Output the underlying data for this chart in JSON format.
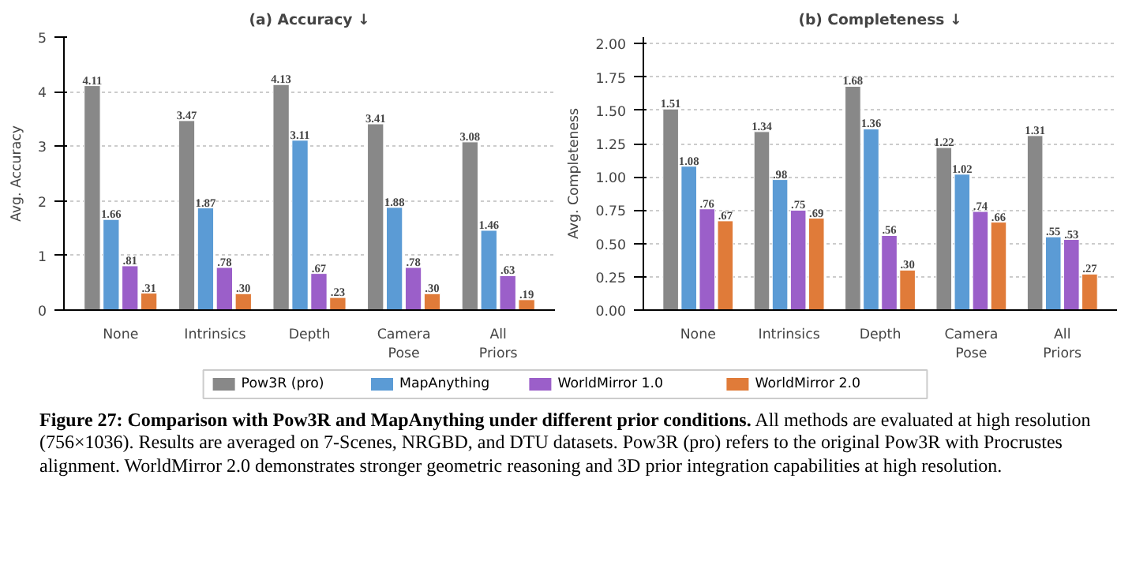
{
  "chart_data": [
    {
      "type": "bar",
      "title": "(a) Accuracy ↓",
      "ylabel": "Avg. Accuracy",
      "categories": [
        "None",
        "Intrinsics",
        "Depth",
        "Camera Pose",
        "All Priors"
      ],
      "ylim": [
        0,
        5
      ],
      "yticks": [
        0,
        1,
        2,
        3,
        4,
        5
      ],
      "grid": "y",
      "legend": "bottom",
      "series": [
        {
          "name": "Pow3R (pro)",
          "color": "#888888",
          "values": [
            4.11,
            3.47,
            4.13,
            3.41,
            3.08
          ],
          "value_labels": [
            "4.11",
            "3.47",
            "4.13",
            "3.41",
            "3.08"
          ]
        },
        {
          "name": "MapAnything",
          "color": "#5b9bd5",
          "values": [
            1.66,
            1.87,
            3.11,
            1.88,
            1.46
          ],
          "value_labels": [
            "1.66",
            "1.87",
            "3.11",
            "1.88",
            "1.46"
          ]
        },
        {
          "name": "WorldMirror 1.0",
          "color": "#9b5fc9",
          "values": [
            0.81,
            0.78,
            0.67,
            0.78,
            0.63
          ],
          "value_labels": [
            ".81",
            ".78",
            ".67",
            ".78",
            ".63"
          ]
        },
        {
          "name": "WorldMirror 2.0",
          "color": "#e07b39",
          "values": [
            0.31,
            0.3,
            0.23,
            0.3,
            0.19
          ],
          "value_labels": [
            ".31",
            ".30",
            ".23",
            ".30",
            ".19"
          ]
        }
      ],
      "annotations": [
        "Figure 27: Comparison with Pow3R and MapAnything under different prior conditions.",
        "All methods are evaluated at high resolution (756×1036). Results are averaged on 7-Scenes, NRGBD, and DTU datasets. Pow3R (pro) refers to the original Pow3R with Procrustes alignment. WorldMirror 2.0 demonstrates stronger geometric reasoning and 3D prior integration capabilities at high resolution."
      ]
    },
    {
      "type": "bar",
      "title": "(b) Completeness ↓",
      "ylabel": "Avg. Completeness",
      "categories": [
        "None",
        "Intrinsics",
        "Depth",
        "Camera Pose",
        "All Priors"
      ],
      "ylim": [
        0,
        2.05
      ],
      "yticks": [
        {
          "value": 0,
          "label": "0.00"
        },
        {
          "value": 0.25,
          "label": "0.25"
        },
        {
          "value": 0.5,
          "label": "0.50"
        },
        {
          "value": 0.75,
          "label": "0.75"
        },
        {
          "value": 1,
          "label": "1.00"
        },
        {
          "value": 1.25,
          "label": "1.25"
        },
        {
          "value": 1.5,
          "label": "1.50"
        },
        {
          "value": 1.75,
          "label": "1.75"
        },
        {
          "value": 2,
          "label": "2.00"
        }
      ],
      "grid": "y",
      "series": [
        {
          "name": "Pow3R (pro)",
          "color": "#888888",
          "values": [
            1.51,
            1.34,
            1.68,
            1.22,
            1.31
          ],
          "value_labels": [
            "1.51",
            "1.34",
            "1.68",
            "1.22",
            "1.31"
          ]
        },
        {
          "name": "MapAnything",
          "color": "#5b9bd5",
          "values": [
            1.08,
            0.98,
            1.36,
            1.02,
            0.55
          ],
          "value_labels": [
            "1.08",
            ".98",
            "1.36",
            "1.02",
            ".55"
          ]
        },
        {
          "name": "WorldMirror 1.0",
          "color": "#9b5fc9",
          "values": [
            0.76,
            0.75,
            0.56,
            0.74,
            0.53
          ],
          "value_labels": [
            ".76",
            ".75",
            ".56",
            ".74",
            ".53"
          ]
        },
        {
          "name": "WorldMirror 2.0",
          "color": "#e07b39",
          "values": [
            0.67,
            0.69,
            0.3,
            0.66,
            0.27
          ],
          "value_labels": [
            ".67",
            ".69",
            ".30",
            ".66",
            ".27"
          ]
        }
      ]
    }
  ]
}
